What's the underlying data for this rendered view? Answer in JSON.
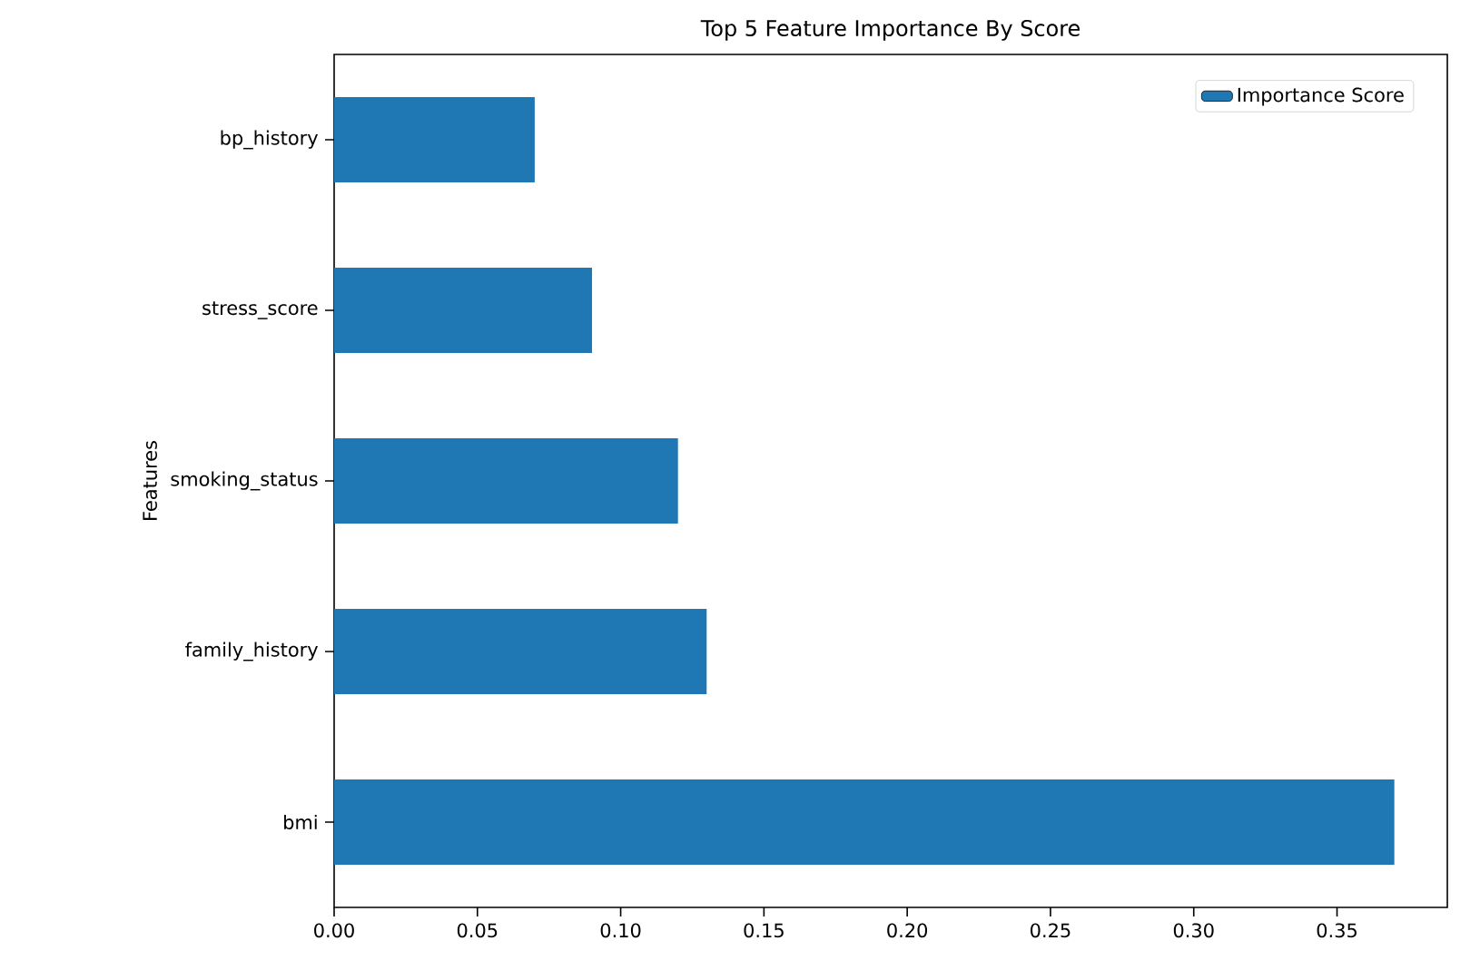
{
  "chart_data": {
    "type": "bar",
    "orientation": "horizontal",
    "title": "Top 5 Feature Importance By Score",
    "ylabel": "Features",
    "categories": [
      "bp_history",
      "stress_score",
      "smoking_status",
      "family_history",
      "bmi"
    ],
    "series": [
      {
        "name": "Importance Score",
        "color": "#1f77b4",
        "values": [
          0.07,
          0.09,
          0.12,
          0.13,
          0.37
        ]
      }
    ],
    "xlim": [
      0,
      0.3885
    ],
    "xticks": [
      {
        "value": 0,
        "label": "0.00"
      },
      {
        "value": 0.05,
        "label": "0.05"
      },
      {
        "value": 0.1,
        "label": "0.10"
      },
      {
        "value": 0.15,
        "label": "0.15"
      },
      {
        "value": 0.2,
        "label": "0.20"
      },
      {
        "value": 0.25,
        "label": "0.25"
      },
      {
        "value": 0.3,
        "label": "0.30"
      },
      {
        "value": 0.35,
        "label": "0.35"
      }
    ],
    "legend": "top right"
  }
}
